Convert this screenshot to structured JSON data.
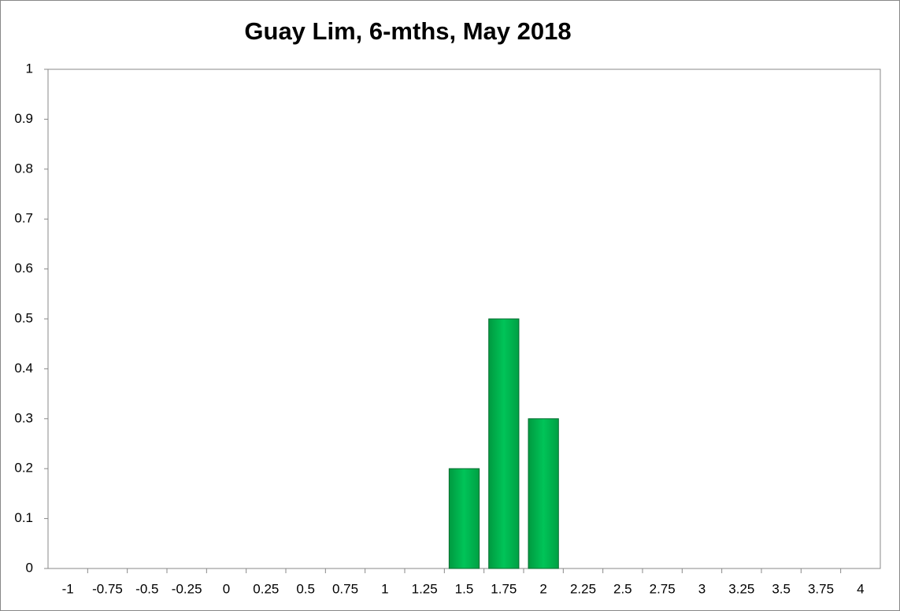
{
  "chart_data": {
    "type": "bar",
    "title": "Guay Lim, 6-mths, May 2018",
    "categories": [
      "-1",
      "-0.75",
      "-0.5",
      "-0.25",
      "0",
      "0.25",
      "0.5",
      "0.75",
      "1",
      "1.25",
      "1.5",
      "1.75",
      "2",
      "2.25",
      "2.5",
      "2.75",
      "3",
      "3.25",
      "3.5",
      "3.75",
      "4"
    ],
    "values": [
      0,
      0,
      0,
      0,
      0,
      0,
      0,
      0,
      0,
      0,
      0.2,
      0.5,
      0.3,
      0,
      0,
      0,
      0,
      0,
      0,
      0,
      0
    ],
    "color": "#00b050",
    "ylim": [
      0,
      1
    ],
    "yticks": [
      0,
      0.1,
      0.2,
      0.3,
      0.4,
      0.5,
      0.6,
      0.7,
      0.8,
      0.9,
      1
    ],
    "grid": false
  }
}
